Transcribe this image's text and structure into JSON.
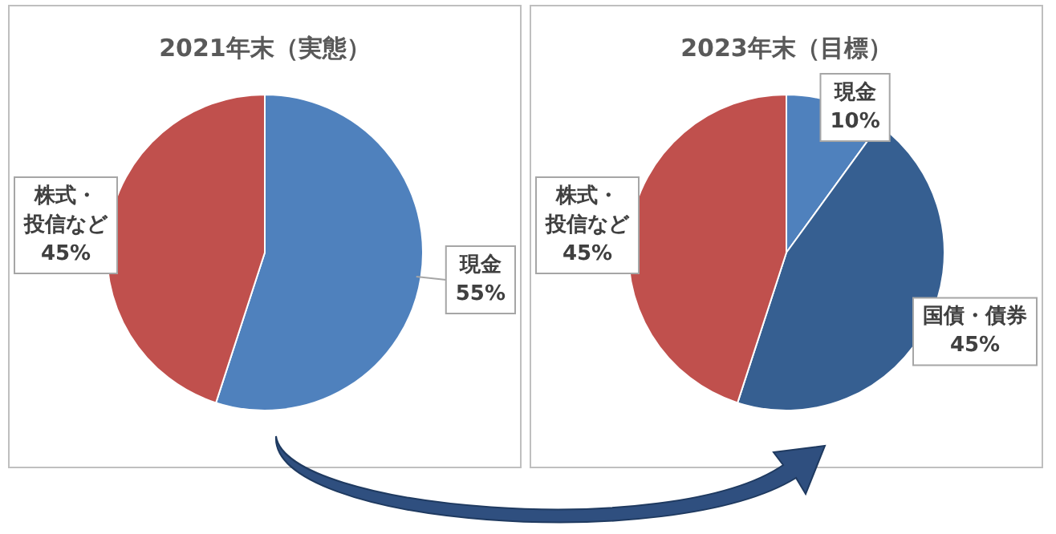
{
  "chart_data": [
    {
      "type": "pie",
      "title": "2021年末（実態）",
      "categories": [
        "現金",
        "株式・投信など"
      ],
      "values": [
        55,
        45
      ],
      "colors": [
        "#4f81bd",
        "#c0504d"
      ],
      "value_labels": [
        "55%",
        "45%"
      ],
      "legend": false
    },
    {
      "type": "pie",
      "title": "2023年末（目標）",
      "categories": [
        "現金",
        "国債・債券",
        "株式・投信など"
      ],
      "values": [
        10,
        45,
        45
      ],
      "colors": [
        "#4f81bd",
        "#365f91",
        "#c0504d"
      ],
      "value_labels": [
        "10%",
        "45%",
        "45%"
      ],
      "legend": false
    }
  ]
}
